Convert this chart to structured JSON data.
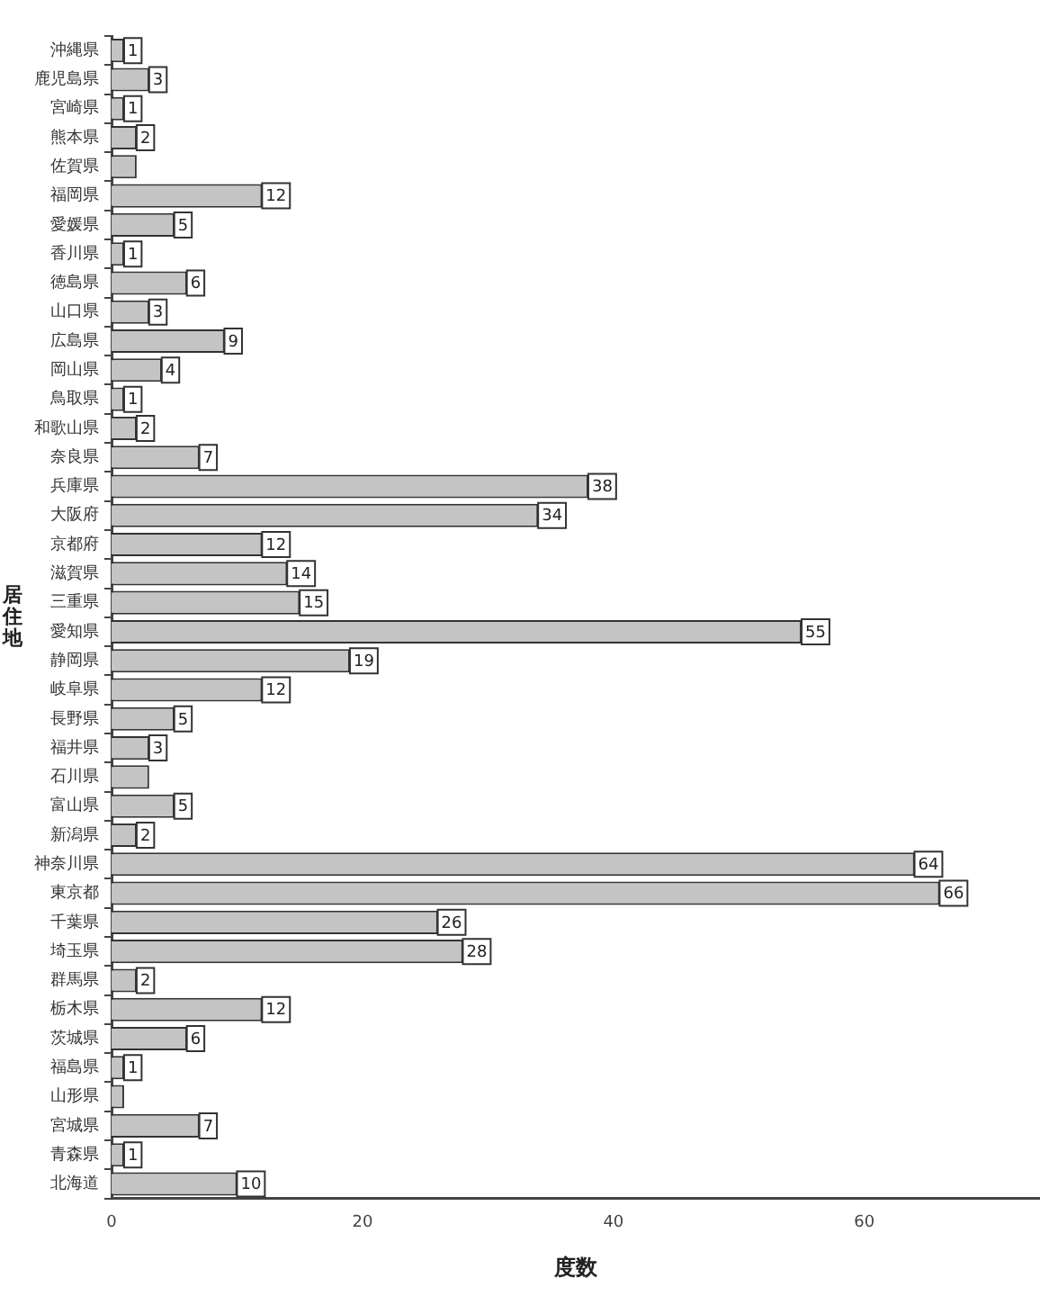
{
  "chart_data": {
    "type": "bar",
    "orientation": "horizontal",
    "xlabel": "度数",
    "ylabel": "居住地",
    "categories": [
      "沖縄県",
      "鹿児島県",
      "宮崎県",
      "熊本県",
      "佐賀県",
      "福岡県",
      "愛媛県",
      "香川県",
      "徳島県",
      "山口県",
      "広島県",
      "岡山県",
      "鳥取県",
      "和歌山県",
      "奈良県",
      "兵庫県",
      "大阪府",
      "京都府",
      "滋賀県",
      "三重県",
      "愛知県",
      "静岡県",
      "岐阜県",
      "長野県",
      "福井県",
      "石川県",
      "富山県",
      "新潟県",
      "神奈川県",
      "東京都",
      "千葉県",
      "埼玉県",
      "群馬県",
      "栃木県",
      "茨城県",
      "福島県",
      "山形県",
      "宮城県",
      "青森県",
      "北海道"
    ],
    "values": [
      1,
      3,
      1,
      2,
      2,
      12,
      5,
      1,
      6,
      3,
      9,
      4,
      1,
      2,
      7,
      38,
      34,
      12,
      14,
      15,
      55,
      19,
      12,
      5,
      3,
      3,
      5,
      2,
      64,
      66,
      26,
      28,
      2,
      12,
      6,
      1,
      1,
      7,
      1,
      10
    ],
    "value_labels": [
      "1",
      "3",
      "1",
      "2",
      null,
      "12",
      "5",
      "1",
      "6",
      "3",
      "9",
      "4",
      "1",
      "2",
      "7",
      "38",
      "34",
      "12",
      "14",
      "15",
      "55",
      "19",
      "12",
      "5",
      "3",
      null,
      "5",
      "2",
      "64",
      "66",
      "26",
      "28",
      "2",
      "12",
      "6",
      "1",
      null,
      "7",
      "1",
      "10"
    ],
    "color": "#c4c4c4",
    "xlim": [
      0,
      74
    ],
    "xticks": [
      0,
      20,
      40,
      60
    ],
    "grid": false,
    "legend": false
  }
}
